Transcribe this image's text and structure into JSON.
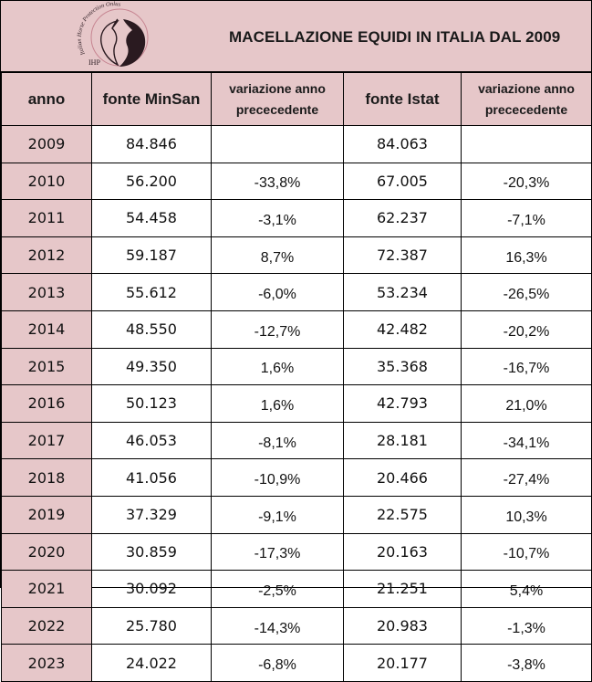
{
  "header": {
    "title": "MACELLAZIONE EQUIDI IN ITALIA DAL 2009",
    "logo_text": "Italian Horse Protection Onlus",
    "logo_initials": "IHP"
  },
  "columns": [
    "anno",
    "fonte MinSan",
    "variazione anno precedente",
    "fonte Istat",
    "variazione anno precedente"
  ],
  "columns_display": [
    "anno",
    "fonte MinSan",
    "variazione anno\nprececedente",
    "fonte Istat",
    "variazione anno\nprececedente"
  ],
  "rows": [
    {
      "anno": "2009",
      "minsan": "84.846",
      "var_minsan": "",
      "istat": "84.063",
      "var_istat": ""
    },
    {
      "anno": "2010",
      "minsan": "56.200",
      "var_minsan": "-33,8%",
      "istat": "67.005",
      "var_istat": "-20,3%"
    },
    {
      "anno": "2011",
      "minsan": "54.458",
      "var_minsan": "-3,1%",
      "istat": "62.237",
      "var_istat": "-7,1%"
    },
    {
      "anno": "2012",
      "minsan": "59.187",
      "var_minsan": "8,7%",
      "istat": "72.387",
      "var_istat": "16,3%"
    },
    {
      "anno": "2013",
      "minsan": "55.612",
      "var_minsan": "-6,0%",
      "istat": "53.234",
      "var_istat": "-26,5%"
    },
    {
      "anno": "2014",
      "minsan": "48.550",
      "var_minsan": "-12,7%",
      "istat": "42.482",
      "var_istat": "-20,2%"
    },
    {
      "anno": "2015",
      "minsan": "49.350",
      "var_minsan": "1,6%",
      "istat": "35.368",
      "var_istat": "-16,7%"
    },
    {
      "anno": "2016",
      "minsan": "50.123",
      "var_minsan": "1,6%",
      "istat": "42.793",
      "var_istat": "21,0%"
    },
    {
      "anno": "2017",
      "minsan": "46.053",
      "var_minsan": "-8,1%",
      "istat": "28.181",
      "var_istat": "-34,1%"
    },
    {
      "anno": "2018",
      "minsan": "41.056",
      "var_minsan": "-10,9%",
      "istat": "20.466",
      "var_istat": "-27,4%"
    },
    {
      "anno": "2019",
      "minsan": "37.329",
      "var_minsan": "-9,1%",
      "istat": "22.575",
      "var_istat": "10,3%"
    },
    {
      "anno": "2020",
      "minsan": "30.859",
      "var_minsan": "-17,3%",
      "istat": "20.163",
      "var_istat": "-10,7%"
    },
    {
      "anno": "2021",
      "minsan": "30.092",
      "var_minsan": "-2,5%",
      "istat": "21.251",
      "var_istat": "5,4%"
    },
    {
      "anno": "2022",
      "minsan": "25.780",
      "var_minsan": "-14,3%",
      "istat": "20.983",
      "var_istat": "-1,3%"
    },
    {
      "anno": "2023",
      "minsan": "24.022",
      "var_minsan": "-6,8%",
      "istat": "20.177",
      "var_istat": "-3,8%"
    }
  ],
  "colors": {
    "header_fill": "#e6c7c9",
    "border": "#000000",
    "logo_dark": "#2a1a20",
    "logo_accent": "#b0566a"
  }
}
